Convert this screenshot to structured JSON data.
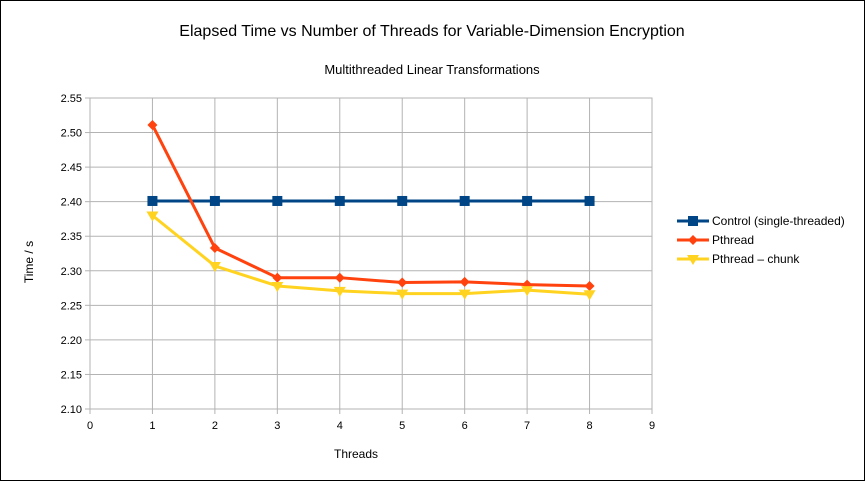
{
  "chart_data": {
    "type": "line",
    "title": "Elapsed Time vs Number of Threads for Variable-Dimension Encryption",
    "subtitle": "Multithreaded Linear Transformations",
    "xlabel": "Threads",
    "ylabel": "Time / s",
    "xlim": [
      0,
      9
    ],
    "ylim": [
      2.1,
      2.55
    ],
    "x_ticks": [
      "0",
      "1",
      "2",
      "3",
      "4",
      "5",
      "6",
      "7",
      "8",
      "9"
    ],
    "y_ticks": [
      "2.10",
      "2.15",
      "2.20",
      "2.25",
      "2.30",
      "2.35",
      "2.40",
      "2.45",
      "2.50",
      "2.55"
    ],
    "grid": true,
    "legend_position": "right",
    "x": [
      1,
      2,
      3,
      4,
      5,
      6,
      7,
      8
    ],
    "series": [
      {
        "name": "Control (single-threaded)",
        "color": "#004586",
        "marker": "square",
        "values": [
          2.401,
          2.401,
          2.401,
          2.401,
          2.401,
          2.401,
          2.401,
          2.401
        ]
      },
      {
        "name": "Pthread",
        "color": "#ff420e",
        "marker": "diamond",
        "values": [
          2.511,
          2.333,
          2.29,
          2.29,
          2.283,
          2.284,
          2.28,
          2.278
        ]
      },
      {
        "name": "Pthread – chunk",
        "color": "#ffd320",
        "marker": "triangle-down",
        "values": [
          2.38,
          2.307,
          2.278,
          2.271,
          2.267,
          2.267,
          2.272,
          2.266
        ]
      }
    ]
  }
}
